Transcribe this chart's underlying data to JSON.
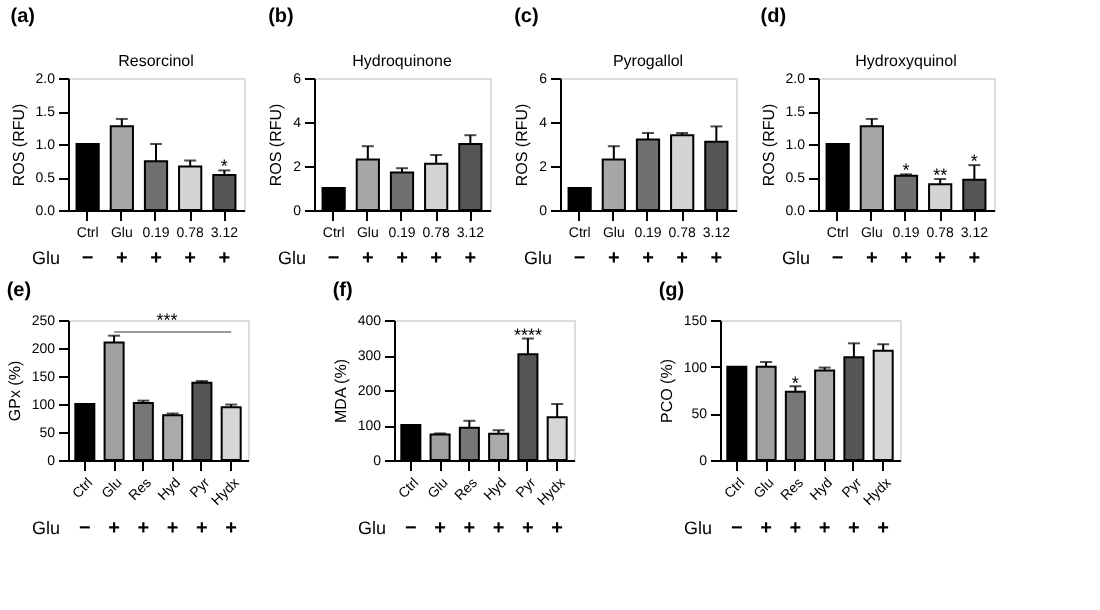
{
  "chart_data": [
    {
      "type": "bar",
      "title": "(a)",
      "subtitle": "Resorcinol",
      "ylabel": "ROS (RFU)",
      "categories": [
        "Ctrl",
        "Glu",
        "0.19",
        "0.78",
        "3.12"
      ],
      "values": [
        1.0,
        1.27,
        0.74,
        0.66,
        0.53
      ],
      "colors": [
        "#000000",
        "#a6a6a6",
        "#707070",
        "#d4d4d4",
        "#555555"
      ],
      "errors": [
        null,
        [
          1.27,
          1.38
        ],
        [
          0.74,
          1.0
        ],
        [
          0.66,
          0.75
        ],
        [
          0.53,
          0.6
        ]
      ],
      "ylim": [
        0,
        2
      ],
      "yticks": [
        {
          "value": 0,
          "label": "0.0"
        },
        0.5,
        {
          "value": 1,
          "label": "1.0"
        },
        1.5,
        {
          "value": 2,
          "label": "2.0"
        }
      ],
      "grid": false,
      "annotations": [
        "Glu",
        "−",
        "+",
        "+",
        "+",
        "+",
        {
          "text": "*",
          "x": "3.12",
          "y": 0.66
        }
      ]
    },
    {
      "type": "bar",
      "title": "(b)",
      "subtitle": "Hydroquinone",
      "ylabel": "ROS (RFU)",
      "categories": [
        "Ctrl",
        "Glu",
        "0.19",
        "0.78",
        "3.12"
      ],
      "values": [
        1.0,
        2.3,
        1.7,
        2.1,
        3.0
      ],
      "colors": [
        "#000000",
        "#a6a6a6",
        "#707070",
        "#d4d4d4",
        "#555555"
      ],
      "errors": [
        null,
        [
          2.3,
          2.9
        ],
        [
          1.7,
          1.9
        ],
        [
          2.1,
          2.5
        ],
        [
          3.0,
          3.4
        ]
      ],
      "ylim": [
        0,
        6
      ],
      "yticks": [
        0,
        2,
        4,
        6
      ],
      "grid": false,
      "annotations": [
        "Glu",
        "−",
        "+",
        "+",
        "+",
        "+"
      ]
    },
    {
      "type": "bar",
      "title": "(c)",
      "subtitle": "Pyrogallol",
      "ylabel": "ROS (RFU)",
      "categories": [
        "Ctrl",
        "Glu",
        "0.19",
        "0.78",
        "3.12"
      ],
      "values": [
        1.0,
        2.3,
        3.2,
        3.4,
        3.1
      ],
      "colors": [
        "#000000",
        "#a6a6a6",
        "#707070",
        "#d4d4d4",
        "#555555"
      ],
      "errors": [
        null,
        [
          2.3,
          2.9
        ],
        [
          3.2,
          3.5
        ],
        [
          3.4,
          3.5
        ],
        [
          3.1,
          3.8
        ]
      ],
      "ylim": [
        0,
        6
      ],
      "yticks": [
        0,
        2,
        4,
        6
      ],
      "grid": false,
      "annotations": [
        "Glu",
        "−",
        "+",
        "+",
        "+",
        "+"
      ]
    },
    {
      "type": "bar",
      "title": "(d)",
      "subtitle": "Hydroxyquinol",
      "ylabel": "ROS (RFU)",
      "categories": [
        "Ctrl",
        "Glu",
        "0.19",
        "0.78",
        "3.12"
      ],
      "values": [
        1.0,
        1.27,
        0.52,
        0.39,
        0.46
      ],
      "colors": [
        "#000000",
        "#a6a6a6",
        "#707070",
        "#d4d4d4",
        "#555555"
      ],
      "errors": [
        null,
        [
          1.27,
          1.38
        ],
        [
          0.52,
          0.54
        ],
        [
          0.39,
          0.47
        ],
        [
          0.46,
          0.68
        ]
      ],
      "ylim": [
        0,
        2
      ],
      "yticks": [
        {
          "value": 0,
          "label": "0.0"
        },
        0.5,
        {
          "value": 1,
          "label": "1.0"
        },
        1.5,
        {
          "value": 2,
          "label": "2.0"
        }
      ],
      "grid": false,
      "annotations": [
        "Glu",
        "−",
        "+",
        "+",
        "+",
        "+",
        {
          "text": "*",
          "x": "0.19",
          "y": 0.6
        },
        {
          "text": "**",
          "x": "0.78",
          "y": 0.53
        },
        {
          "text": "*",
          "x": "3.12",
          "y": 0.75
        }
      ]
    },
    {
      "type": "bar",
      "title": "(e)",
      "ylabel": "GPx (%)",
      "categories": [
        "Ctrl",
        "Glu",
        "Res",
        "Hyd",
        "Pyr",
        "Hydx"
      ],
      "values": [
        100,
        210,
        102,
        80,
        138,
        94
      ],
      "colors": [
        "#000000",
        "#a0a0a0",
        "#777777",
        "#aaaaaa",
        "#555555",
        "#d6d6d6"
      ],
      "errors": [
        null,
        [
          210,
          222
        ],
        [
          102,
          106
        ],
        [
          80,
          83
        ],
        [
          138,
          141
        ],
        [
          94,
          99
        ]
      ],
      "ylim": [
        0,
        250
      ],
      "yticks": [
        0,
        50,
        100,
        150,
        200,
        250
      ],
      "grid": false,
      "annotations": [
        "Glu",
        "−",
        "+",
        "+",
        "+",
        "+",
        "+",
        "***"
      ]
    },
    {
      "type": "bar",
      "title": "(f)",
      "ylabel": "MDA (%)",
      "categories": [
        "Ctrl",
        "Glu",
        "Res",
        "Hyd",
        "Pyr",
        "Hydx"
      ],
      "values": [
        100,
        73,
        92,
        75,
        302,
        122
      ],
      "colors": [
        "#000000",
        "#a0a0a0",
        "#777777",
        "#aaaaaa",
        "#555555",
        "#d6d6d6"
      ],
      "errors": [
        null,
        [
          73,
          76
        ],
        [
          92,
          112
        ],
        [
          75,
          85
        ],
        [
          302,
          347
        ],
        [
          122,
          160
        ]
      ],
      "ylim": [
        0,
        400
      ],
      "yticks": [
        0,
        100,
        200,
        300,
        400
      ],
      "grid": false,
      "annotations": [
        "Glu",
        "−",
        "+",
        "+",
        "+",
        "+",
        "+",
        {
          "text": "****",
          "x": "Pyr",
          "y": 358
        }
      ]
    },
    {
      "type": "bar",
      "title": "(g)",
      "ylabel": "PCO (%)",
      "categories": [
        "Ctrl",
        "Glu",
        "Res",
        "Hyd",
        "Pyr",
        "Hydx"
      ],
      "values": [
        100,
        100,
        73,
        96,
        110,
        117
      ],
      "colors": [
        "#000000",
        "#a0a0a0",
        "#777777",
        "#aaaaaa",
        "#555555",
        "#d6d6d6"
      ],
      "errors": [
        null,
        [
          100,
          105
        ],
        [
          73,
          79
        ],
        [
          96,
          99
        ],
        [
          110,
          125
        ],
        [
          117,
          124
        ]
      ],
      "ylim": [
        0,
        150
      ],
      "yticks": [
        0,
        50,
        100,
        150
      ],
      "grid": false,
      "annotations": [
        "Glu",
        "−",
        "+",
        "+",
        "+",
        "+",
        "+",
        {
          "text": "*",
          "x": "Res",
          "y": 82
        }
      ]
    }
  ]
}
